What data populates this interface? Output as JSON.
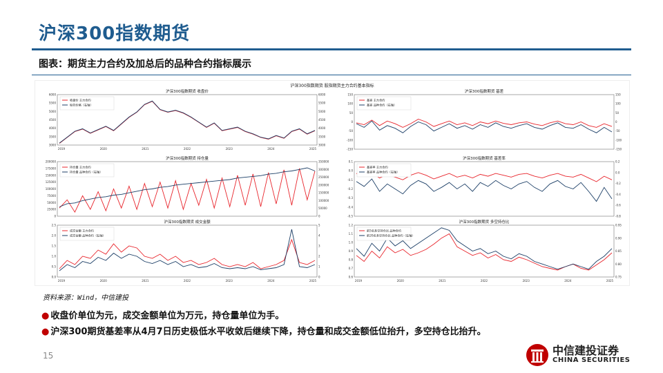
{
  "header": {
    "title": "沪深300指数期货",
    "subtitle": "图表：期货主力合约及加总后的品种合约指标展示"
  },
  "figure": {
    "title": "沪深300指数期货 股指期货主力合约基本指标"
  },
  "source": "资料来源：Wind，中信建投",
  "bullets": [
    "收盘价单位为元，成交金额单位为万元，持仓量单位为手。",
    "沪深300期货基差率从4月7日历史极低水平收敛后继续下降，持仓量和成交金额低位抬升，多空持仓比抬升。"
  ],
  "page_number": "15",
  "logo": {
    "cn": "中信建投证券",
    "en": "CHINA SECURITIES"
  },
  "colors": {
    "brand": "#1f5c8f",
    "red": "#e8232a",
    "navy": "#1b3e66",
    "accent": "#c00000"
  },
  "chart_data": [
    {
      "type": "line",
      "title": "沪深300指数期货  收盘价",
      "x_ticks": [
        "2019",
        "2020",
        "2021",
        "2022",
        "2023",
        "2024",
        "2025"
      ],
      "ylim_left": [
        3000,
        6000
      ],
      "yticks_left": [
        "3000",
        "3500",
        "4000",
        "4500",
        "5000",
        "5500",
        "6000"
      ],
      "ylim_right": [
        3000,
        6000
      ],
      "yticks_right": [
        "3000",
        "3500",
        "4000",
        "4500",
        "5000",
        "5500",
        "6000"
      ],
      "legend": "top-left",
      "series": [
        {
          "name": "收盘价  主力合约",
          "color": "#e8232a",
          "axis": "left",
          "values": [
            3100,
            3450,
            3800,
            3950,
            3700,
            3900,
            4100,
            3850,
            4250,
            4650,
            4950,
            5400,
            5600,
            5100,
            4950,
            5050,
            4900,
            4650,
            4350,
            4050,
            4300,
            3850,
            3950,
            4050,
            3800,
            3650,
            3450,
            3350,
            3550,
            3400,
            3800,
            3950,
            3650,
            3850
          ]
        },
        {
          "name": "标的价格（右轴）",
          "color": "#1b3e66",
          "axis": "right",
          "values": [
            3120,
            3470,
            3820,
            3970,
            3720,
            3920,
            4120,
            3870,
            4270,
            4670,
            4970,
            5420,
            5620,
            5120,
            4970,
            5070,
            4920,
            4670,
            4370,
            4070,
            4320,
            3870,
            3970,
            4070,
            3820,
            3670,
            3470,
            3370,
            3570,
            3420,
            3820,
            3970,
            3670,
            3870
          ]
        }
      ]
    },
    {
      "type": "line",
      "title": "沪深300指数期货  基差",
      "x_ticks": [],
      "ylim_left": [
        -150,
        150
      ],
      "yticks_left": [
        "-150",
        "-100",
        "-50",
        "0",
        "50",
        "100",
        "150"
      ],
      "ylim_right": [
        -150,
        150
      ],
      "yticks_right": [
        "-150",
        "-100",
        "-50",
        "0",
        "50",
        "100",
        "150"
      ],
      "legend": "top-left",
      "series": [
        {
          "name": "基差  主力合约",
          "color": "#e8232a",
          "axis": "left",
          "values": [
            -5,
            -15,
            10,
            -20,
            5,
            -10,
            -30,
            -10,
            15,
            0,
            -25,
            -10,
            5,
            -15,
            -5,
            -20,
            0,
            -10,
            5,
            -8,
            -15,
            -5,
            0,
            -12,
            -20,
            -5,
            5,
            -10,
            -15,
            0,
            -20,
            -30,
            -10,
            -25
          ]
        },
        {
          "name": "基差  品种合约（右轴）",
          "color": "#1b3e66",
          "axis": "right",
          "values": [
            -10,
            -30,
            5,
            -45,
            -20,
            -35,
            -60,
            -25,
            0,
            -15,
            -50,
            -30,
            -10,
            -35,
            -20,
            -40,
            -15,
            -30,
            -5,
            -25,
            -35,
            -20,
            -10,
            -30,
            -40,
            -20,
            -5,
            -30,
            -35,
            -15,
            -40,
            -60,
            -30,
            -55
          ]
        }
      ]
    },
    {
      "type": "line",
      "title": "沪深300指数期货  持仓量",
      "x_ticks": [],
      "ylim_left": [
        0,
        200000
      ],
      "yticks_left": [
        "0",
        "25000",
        "50000",
        "75000",
        "100000",
        "125000",
        "150000",
        "175000",
        "200000"
      ],
      "ylim_right": [
        0,
        350000
      ],
      "yticks_right": [
        "0",
        "50000",
        "100000",
        "150000",
        "200000",
        "250000",
        "300000",
        "350000"
      ],
      "legend": "top-left",
      "series": [
        {
          "name": "持仓量  主力合约",
          "color": "#e8232a",
          "axis": "left",
          "values": [
            30000,
            60000,
            15000,
            75000,
            25000,
            90000,
            20000,
            100000,
            30000,
            110000,
            25000,
            120000,
            35000,
            125000,
            30000,
            130000,
            25000,
            120000,
            40000,
            135000,
            30000,
            140000,
            35000,
            150000,
            40000,
            155000,
            35000,
            160000,
            45000,
            170000,
            40000,
            175000,
            60000,
            165000
          ]
        },
        {
          "name": "持仓量  品种合约（右轴）",
          "color": "#1b3e66",
          "axis": "right",
          "values": [
            60000,
            80000,
            85000,
            100000,
            110000,
            120000,
            125000,
            135000,
            140000,
            150000,
            160000,
            170000,
            175000,
            185000,
            190000,
            200000,
            205000,
            210000,
            215000,
            220000,
            225000,
            230000,
            235000,
            245000,
            250000,
            255000,
            260000,
            270000,
            275000,
            285000,
            290000,
            300000,
            310000,
            290000
          ]
        }
      ]
    },
    {
      "type": "line",
      "title": "沪深300指数期货  基差率",
      "x_ticks": [],
      "ylim_left": [
        -0.5,
        0.1
      ],
      "yticks_left": [
        "-0.5",
        "-0.4",
        "-0.3",
        "-0.2",
        "-0.1",
        "0.0",
        "0.1"
      ],
      "ylim_right": [
        -0.8,
        0.3
      ],
      "yticks_right": [
        "-0.8",
        "-0.6",
        "-0.4",
        "-0.2",
        "0.0",
        "0.2"
      ],
      "legend": "top-left",
      "series": [
        {
          "name": "基差率  主力合约",
          "color": "#e8232a",
          "axis": "left",
          "values": [
            -0.03,
            -0.06,
            -0.02,
            -0.08,
            -0.04,
            -0.07,
            -0.1,
            -0.05,
            -0.02,
            -0.05,
            -0.09,
            -0.06,
            -0.03,
            -0.07,
            -0.05,
            -0.08,
            -0.04,
            -0.06,
            -0.03,
            -0.05,
            -0.07,
            -0.04,
            -0.03,
            -0.06,
            -0.08,
            -0.05,
            -0.03,
            -0.06,
            -0.07,
            -0.04,
            -0.08,
            -0.12,
            -0.06,
            -0.1
          ]
        },
        {
          "name": "基差率  品种合约（右轴）",
          "color": "#1b3e66",
          "axis": "right",
          "values": [
            -0.1,
            -0.2,
            -0.05,
            -0.3,
            -0.15,
            -0.25,
            -0.35,
            -0.18,
            -0.08,
            -0.15,
            -0.3,
            -0.22,
            -0.12,
            -0.25,
            -0.15,
            -0.3,
            -0.12,
            -0.2,
            -0.08,
            -0.18,
            -0.25,
            -0.15,
            -0.1,
            -0.22,
            -0.3,
            -0.15,
            -0.08,
            -0.2,
            -0.25,
            -0.12,
            -0.3,
            -0.5,
            -0.22,
            -0.45
          ]
        }
      ]
    },
    {
      "type": "line",
      "title": "沪深300指数期货  成交金额",
      "x_ticks": [
        "2019",
        "2020",
        "2021",
        "2022",
        "2023",
        "2024",
        "2025"
      ],
      "ylim_left": [
        0,
        2.5
      ],
      "yticks_left": [
        "0.0",
        "0.5",
        "1.0",
        "1.5",
        "2.0",
        "2.5"
      ],
      "ylim_right": [
        0,
        5
      ],
      "yticks_right": [
        "0",
        "1",
        "2",
        "3",
        "4",
        "5"
      ],
      "legend": "top-left",
      "series": [
        {
          "name": "成交金额  主力合约",
          "color": "#e8232a",
          "axis": "left",
          "values": [
            0.4,
            0.8,
            0.6,
            1.0,
            0.9,
            1.3,
            1.1,
            1.6,
            1.2,
            1.5,
            1.4,
            1.0,
            0.9,
            1.1,
            0.8,
            1.0,
            0.7,
            0.8,
            0.6,
            0.7,
            0.9,
            0.6,
            0.5,
            0.6,
            0.5,
            0.7,
            0.4,
            0.5,
            0.6,
            0.8,
            1.8,
            0.7,
            0.6,
            0.8
          ]
        },
        {
          "name": "成交金额  品种合约（右轴）",
          "color": "#1b3e66",
          "axis": "right",
          "values": [
            0.6,
            1.2,
            0.9,
            1.5,
            1.3,
            1.9,
            1.6,
            2.3,
            1.8,
            2.2,
            2.0,
            1.5,
            1.3,
            1.6,
            1.2,
            1.5,
            1.0,
            1.2,
            0.9,
            1.0,
            1.3,
            0.9,
            0.8,
            0.9,
            0.8,
            1.0,
            0.7,
            0.8,
            0.9,
            1.2,
            4.6,
            1.0,
            0.9,
            1.2
          ]
        }
      ]
    },
    {
      "type": "line",
      "title": "沪深300指数期货  多空持仓比",
      "x_ticks": [
        "2019",
        "2020",
        "2021",
        "2022",
        "2023",
        "2024",
        "2025"
      ],
      "ylim_left": [
        0.6,
        1.2
      ],
      "yticks_left": [
        "0.6",
        "0.7",
        "0.8",
        "0.9",
        "1.0",
        "1.1",
        "1.2"
      ],
      "ylim_right": [
        0.75,
        0.95
      ],
      "yticks_right": [
        "0.75",
        "0.80",
        "0.85",
        "0.90",
        "0.95"
      ],
      "legend": "top-left",
      "series": [
        {
          "name": "前5名多空持仓比  品种合约",
          "color": "#e8232a",
          "axis": "left",
          "values": [
            0.85,
            0.78,
            0.9,
            0.82,
            0.95,
            0.88,
            0.92,
            0.85,
            0.88,
            0.92,
            0.98,
            1.05,
            1.1,
            0.95,
            0.9,
            0.85,
            0.88,
            0.82,
            0.86,
            0.8,
            0.78,
            0.83,
            0.8,
            0.76,
            0.72,
            0.7,
            0.68,
            0.72,
            0.75,
            0.7,
            0.68,
            0.74,
            0.8,
            0.88
          ]
        },
        {
          "name": "前20名多空持仓比  品种合约（右轴）",
          "color": "#1b3e66",
          "axis": "right",
          "values": [
            0.86,
            0.83,
            0.88,
            0.85,
            0.9,
            0.87,
            0.89,
            0.86,
            0.88,
            0.9,
            0.92,
            0.94,
            0.93,
            0.89,
            0.87,
            0.85,
            0.86,
            0.84,
            0.85,
            0.83,
            0.82,
            0.84,
            0.83,
            0.81,
            0.8,
            0.79,
            0.78,
            0.79,
            0.8,
            0.79,
            0.78,
            0.81,
            0.83,
            0.86
          ]
        }
      ]
    }
  ]
}
